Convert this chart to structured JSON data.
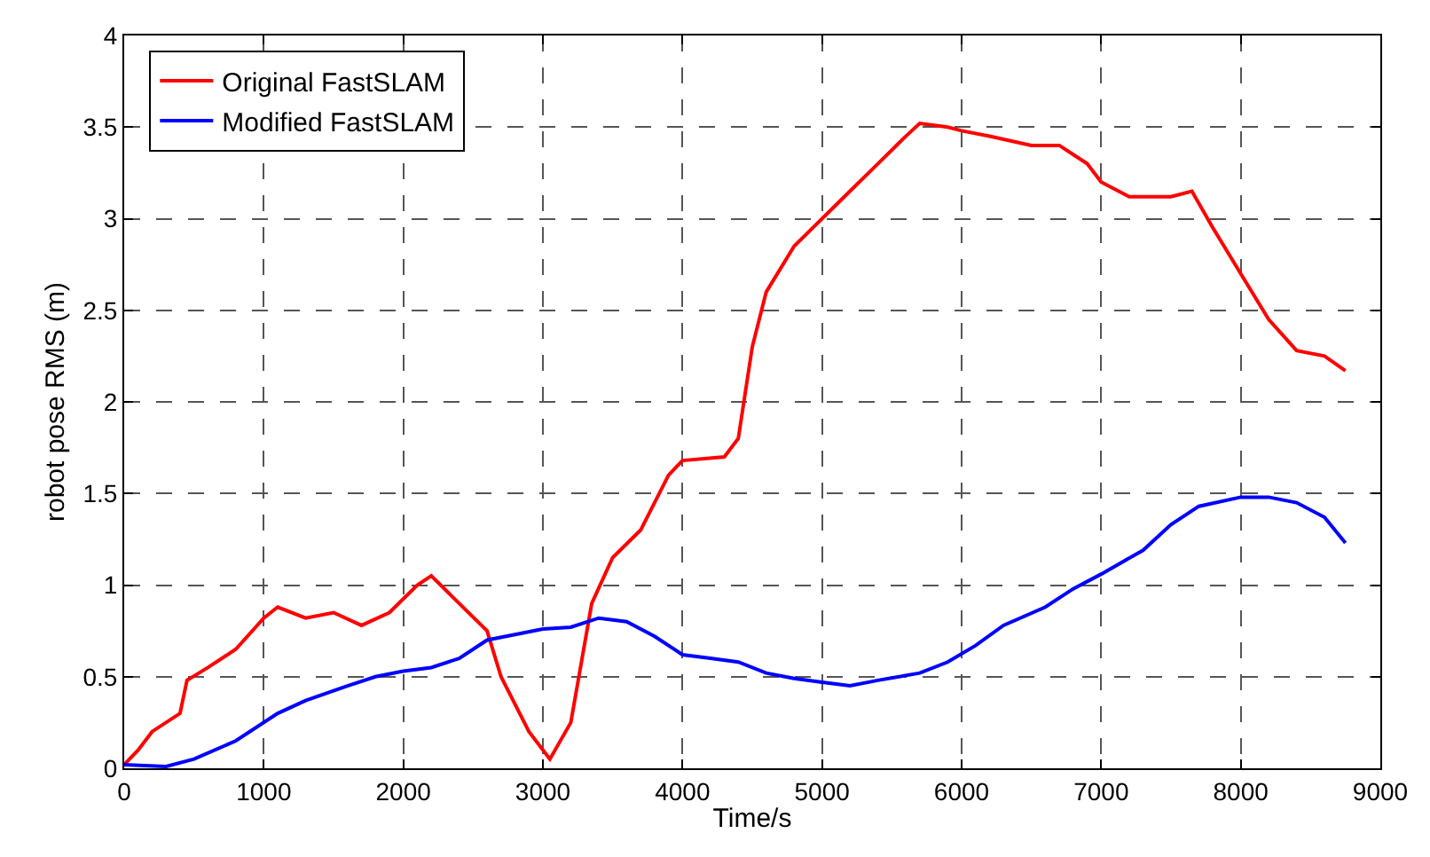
{
  "chart_data": {
    "type": "line",
    "xlabel": "Time/s",
    "ylabel": "robot pose RMS (m)",
    "xlim": [
      0,
      9000
    ],
    "xticks": [
      0,
      1000,
      2000,
      3000,
      4000,
      5000,
      6000,
      7000,
      8000,
      9000
    ],
    "ylim": [
      0,
      4
    ],
    "yticks": [
      0,
      0.5,
      1,
      1.5,
      2,
      2.5,
      3,
      3.5,
      4
    ],
    "grid": true,
    "legend": "top left",
    "marker": "none",
    "line_style": "solid",
    "series": [
      {
        "name": "Original FastSLAM",
        "color": "#ff0000",
        "x": [
          0,
          100,
          200,
          400,
          450,
          600,
          800,
          1000,
          1100,
          1300,
          1500,
          1700,
          1900,
          2100,
          2200,
          2400,
          2600,
          2700,
          2900,
          3050,
          3200,
          3350,
          3500,
          3700,
          3900,
          4000,
          4300,
          4400,
          4500,
          4600,
          4800,
          5000,
          5200,
          5400,
          5600,
          5700,
          5900,
          6000,
          6200,
          6500,
          6700,
          6800,
          6900,
          7000,
          7200,
          7500,
          7650,
          7800,
          8000,
          8200,
          8400,
          8600,
          8750
        ],
        "values": [
          0.02,
          0.1,
          0.2,
          0.3,
          0.48,
          0.55,
          0.65,
          0.82,
          0.88,
          0.82,
          0.85,
          0.78,
          0.85,
          1.0,
          1.05,
          0.9,
          0.75,
          0.5,
          0.2,
          0.05,
          0.25,
          0.9,
          1.15,
          1.3,
          1.6,
          1.68,
          1.7,
          1.8,
          2.3,
          2.6,
          2.85,
          3.0,
          3.15,
          3.3,
          3.45,
          3.52,
          3.5,
          3.48,
          3.45,
          3.4,
          3.4,
          3.35,
          3.3,
          3.2,
          3.12,
          3.12,
          3.15,
          2.95,
          2.7,
          2.45,
          2.28,
          2.25,
          2.17
        ]
      },
      {
        "name": "Modified FastSLAM",
        "color": "#0000ff",
        "x": [
          0,
          300,
          500,
          800,
          1100,
          1300,
          1600,
          1800,
          2000,
          2200,
          2400,
          2600,
          2800,
          3000,
          3200,
          3400,
          3600,
          3800,
          4000,
          4200,
          4400,
          4600,
          4800,
          5000,
          5200,
          5400,
          5700,
          5900,
          6100,
          6300,
          6600,
          6800,
          7000,
          7300,
          7500,
          7700,
          8000,
          8200,
          8400,
          8600,
          8750
        ],
        "values": [
          0.02,
          0.01,
          0.05,
          0.15,
          0.3,
          0.37,
          0.45,
          0.5,
          0.53,
          0.55,
          0.6,
          0.7,
          0.73,
          0.76,
          0.77,
          0.82,
          0.8,
          0.72,
          0.62,
          0.6,
          0.58,
          0.52,
          0.49,
          0.47,
          0.45,
          0.48,
          0.52,
          0.58,
          0.67,
          0.78,
          0.88,
          0.98,
          1.06,
          1.19,
          1.33,
          1.43,
          1.48,
          1.48,
          1.45,
          1.37,
          1.23
        ]
      }
    ]
  }
}
